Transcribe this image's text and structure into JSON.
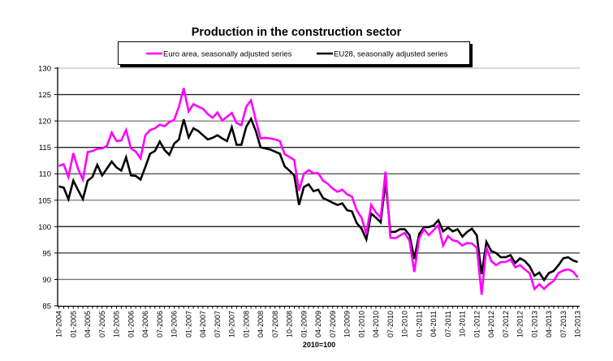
{
  "chart_data": {
    "type": "line",
    "title": "Production in the construction sector",
    "xlabel": "2010=100",
    "ylabel": "",
    "ylim": [
      85,
      130
    ],
    "yticks": [
      85,
      90,
      95,
      100,
      105,
      110,
      115,
      120,
      125,
      130
    ],
    "grid": true,
    "legend_position": "top",
    "x_start": "10-2004",
    "x_end": "10-2013",
    "x_frequency": "monthly",
    "x_tick_labels": [
      "10-2004",
      "01-2005",
      "04-2005",
      "07-2005",
      "10-2005",
      "01-2006",
      "04-2006",
      "07-2006",
      "10-2006",
      "01-2007",
      "04-2007",
      "07-2007",
      "10-2007",
      "01-2008",
      "04-2008",
      "07-2008",
      "10-2008",
      "01-2009",
      "04-2009",
      "07-2009",
      "10-2009",
      "01-2010",
      "04-2010",
      "07-2010",
      "10-2010",
      "01-2011",
      "04-2011",
      "07-2011",
      "10-2011",
      "01-2012",
      "04-2012",
      "07-2012",
      "10-2012",
      "01-2013",
      "04-2013",
      "07-2013",
      "10-2013"
    ],
    "series": [
      {
        "name": "Euro area, seasonally adjusted series",
        "color": "#FF00FF",
        "values": [
          111.5,
          111.8,
          109.4,
          113.9,
          110.9,
          108.9,
          114.1,
          114.3,
          114.7,
          114.8,
          115.3,
          117.8,
          116.2,
          116.3,
          118.3,
          114.8,
          114.2,
          112.9,
          117.3,
          118.3,
          118.6,
          119.3,
          119.0,
          119.8,
          120.2,
          122.7,
          126.2,
          121.8,
          123.2,
          122.7,
          122.3,
          121.3,
          120.6,
          121.6,
          120.1,
          120.8,
          121.5,
          119.6,
          119.2,
          122.7,
          123.9,
          120.1,
          116.7,
          116.8,
          116.7,
          116.5,
          116.2,
          113.7,
          113.2,
          112.6,
          106.8,
          110.0,
          110.7,
          110.1,
          110.1,
          108.7,
          108.1,
          107.2,
          106.6,
          107.0,
          106.1,
          105.7,
          103.1,
          101.7,
          98.6,
          104.1,
          102.7,
          101.7,
          110.4,
          97.9,
          97.8,
          98.3,
          98.8,
          97.3,
          91.4,
          97.8,
          99.5,
          98.4,
          99.3,
          100.3,
          96.4,
          98.2,
          97.4,
          97.2,
          96.4,
          96.9,
          96.8,
          96.0,
          87.1,
          96.1,
          93.5,
          92.7,
          93.3,
          93.3,
          93.8,
          92.3,
          92.7,
          91.9,
          91.2,
          88.2,
          89.1,
          88.2,
          89.1,
          89.7,
          91.2,
          91.7,
          91.9,
          91.5,
          90.4
        ]
      },
      {
        "name": "EU28, seasonally adjusted series",
        "color": "#000000",
        "values": [
          107.6,
          107.4,
          105.2,
          108.7,
          106.9,
          105.2,
          108.7,
          109.4,
          111.7,
          109.7,
          111.0,
          112.3,
          111.2,
          110.6,
          113.1,
          109.7,
          109.6,
          108.9,
          111.3,
          113.8,
          114.3,
          116.1,
          114.5,
          113.6,
          115.7,
          116.5,
          120.3,
          116.9,
          118.6,
          118.1,
          117.3,
          116.5,
          116.8,
          117.3,
          116.7,
          116.2,
          118.8,
          115.5,
          115.5,
          118.9,
          120.4,
          118.1,
          115.0,
          114.8,
          114.6,
          114.2,
          113.8,
          111.4,
          110.6,
          109.7,
          104.1,
          107.5,
          108.0,
          106.7,
          107.0,
          105.4,
          105.0,
          104.5,
          104.1,
          104.4,
          103.1,
          102.9,
          100.7,
          99.6,
          97.6,
          102.5,
          101.7,
          100.8,
          108.6,
          99.0,
          99.0,
          99.5,
          99.5,
          98.4,
          93.9,
          98.6,
          99.9,
          99.9,
          100.2,
          101.2,
          99.1,
          99.8,
          99.1,
          99.5,
          98.1,
          99.0,
          99.6,
          98.3,
          91.0,
          97.1,
          95.4,
          95.0,
          94.2,
          94.2,
          94.6,
          93.1,
          94.0,
          93.5,
          92.5,
          90.7,
          91.3,
          89.9,
          91.2,
          91.6,
          92.7,
          94.0,
          94.2,
          93.6,
          93.3
        ]
      }
    ]
  }
}
